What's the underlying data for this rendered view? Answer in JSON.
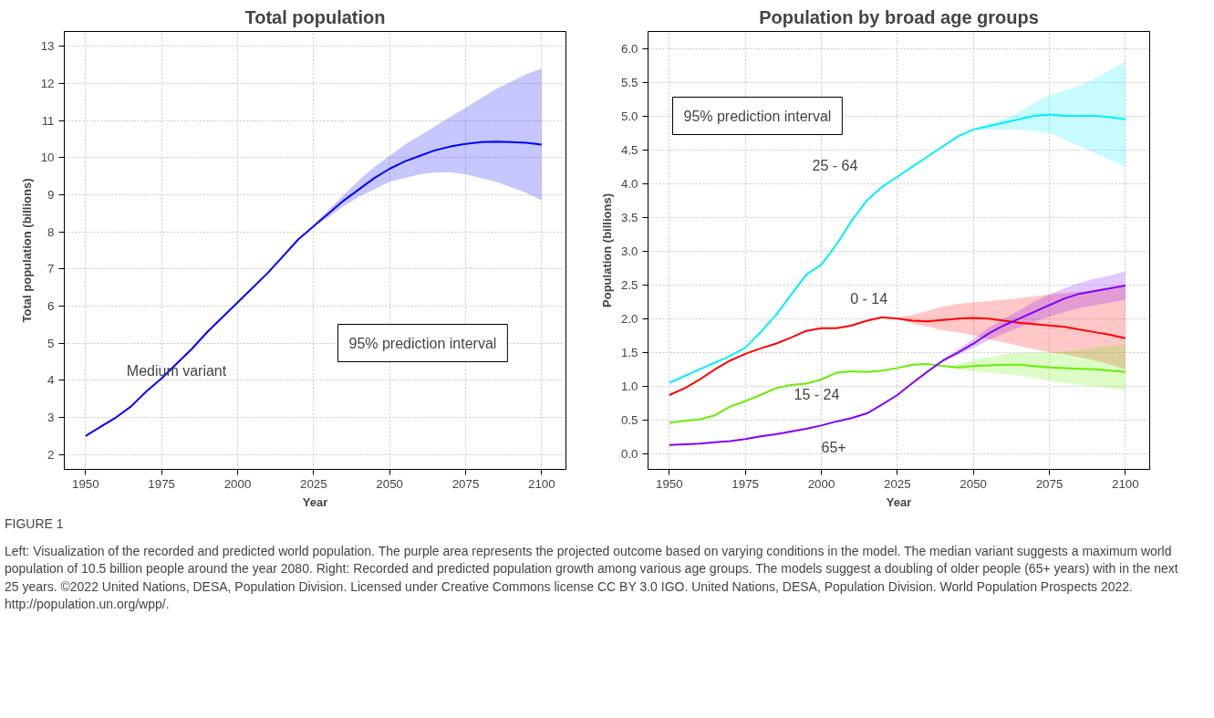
{
  "chart_data": [
    {
      "type": "line",
      "title": "Total population",
      "xlabel": "Year",
      "ylabel": "Total population (billions)",
      "annotations": [
        "95% prediction interval"
      ],
      "grid": true,
      "x": [
        1950,
        1955,
        1960,
        1965,
        1970,
        1975,
        1980,
        1985,
        1990,
        1995,
        2000,
        2005,
        2010,
        2015,
        2020,
        2025,
        2030,
        2035,
        2040,
        2045,
        2050,
        2055,
        2060,
        2065,
        2070,
        2075,
        2080,
        2085,
        2090,
        2095,
        2100
      ],
      "xlim": [
        1943,
        2108
      ],
      "xticks": [
        1950,
        1975,
        2000,
        2025,
        2050,
        2075,
        2100
      ],
      "ylim": [
        1.6,
        13.4
      ],
      "yticks": [
        2,
        3,
        4,
        5,
        6,
        7,
        8,
        9,
        10,
        11,
        12,
        13
      ],
      "series": [
        {
          "name": "Medium variant",
          "color": "#0000ff",
          "values": [
            2.5,
            2.75,
            3.0,
            3.3,
            3.7,
            4.05,
            4.45,
            4.85,
            5.3,
            5.7,
            6.1,
            6.5,
            6.9,
            7.35,
            7.8,
            8.15,
            8.5,
            8.85,
            9.15,
            9.45,
            9.7,
            9.9,
            10.05,
            10.2,
            10.3,
            10.37,
            10.42,
            10.43,
            10.42,
            10.4,
            10.35
          ],
          "lower": [
            null,
            null,
            null,
            null,
            null,
            null,
            null,
            null,
            null,
            null,
            null,
            null,
            null,
            null,
            null,
            8.15,
            8.4,
            8.7,
            8.95,
            9.15,
            9.35,
            9.45,
            9.55,
            9.6,
            9.6,
            9.55,
            9.45,
            9.35,
            9.2,
            9.05,
            8.85
          ],
          "upper": [
            null,
            null,
            null,
            null,
            null,
            null,
            null,
            null,
            null,
            null,
            null,
            null,
            null,
            null,
            null,
            8.2,
            8.6,
            9.0,
            9.4,
            9.75,
            10.05,
            10.35,
            10.6,
            10.85,
            11.1,
            11.35,
            11.6,
            11.85,
            12.05,
            12.25,
            12.4
          ]
        }
      ]
    },
    {
      "type": "line",
      "title": "Population by broad age groups",
      "xlabel": "Year",
      "ylabel": "Population (billions)",
      "grid": true,
      "x": [
        1950,
        1955,
        1960,
        1965,
        1970,
        1975,
        1980,
        1985,
        1990,
        1995,
        2000,
        2005,
        2010,
        2015,
        2020,
        2025,
        2030,
        2035,
        2040,
        2045,
        2050,
        2055,
        2060,
        2065,
        2070,
        2075,
        2080,
        2085,
        2090,
        2095,
        2100
      ],
      "xlim": [
        1943,
        2108
      ],
      "xticks": [
        1950,
        1975,
        2000,
        2025,
        2050,
        2075,
        2100
      ],
      "ylim": [
        -0.23,
        6.25
      ],
      "yticks": [
        {
          "value": 0,
          "label": "0.0"
        },
        0.5,
        {
          "value": 1,
          "label": "1.0"
        },
        1.5,
        {
          "value": 2,
          "label": "2.0"
        },
        2.5,
        {
          "value": 3,
          "label": "3.0"
        },
        3.5,
        {
          "value": 4,
          "label": "4.0"
        },
        4.5,
        {
          "value": 5,
          "label": "5.0"
        },
        5.5,
        {
          "value": 6,
          "label": "6.0"
        }
      ],
      "series": [
        {
          "name": "25 - 64",
          "color": "#00eeff",
          "values": [
            1.05,
            1.15,
            1.25,
            1.35,
            1.45,
            1.57,
            1.8,
            2.05,
            2.35,
            2.65,
            2.8,
            3.1,
            3.45,
            3.75,
            3.95,
            4.1,
            4.25,
            4.4,
            4.55,
            4.7,
            4.8,
            4.85,
            4.9,
            4.95,
            5.0,
            5.02,
            5.0,
            5.0,
            5.0,
            4.98,
            4.95
          ],
          "lower": [
            null,
            null,
            null,
            null,
            null,
            null,
            null,
            null,
            null,
            null,
            null,
            null,
            null,
            null,
            null,
            null,
            null,
            null,
            null,
            null,
            4.8,
            4.8,
            4.8,
            4.8,
            4.78,
            4.75,
            4.65,
            4.55,
            4.45,
            4.35,
            4.25
          ],
          "upper": [
            null,
            null,
            null,
            null,
            null,
            null,
            null,
            null,
            null,
            null,
            null,
            null,
            null,
            null,
            null,
            null,
            null,
            null,
            null,
            null,
            4.8,
            4.88,
            4.95,
            5.05,
            5.2,
            5.3,
            5.38,
            5.45,
            5.55,
            5.68,
            5.8
          ]
        },
        {
          "name": "0 - 14",
          "color": "#ff0000",
          "values": [
            0.87,
            0.97,
            1.1,
            1.25,
            1.38,
            1.48,
            1.56,
            1.63,
            1.72,
            1.82,
            1.86,
            1.86,
            1.9,
            1.97,
            2.02,
            2.0,
            1.97,
            1.96,
            1.98,
            2.0,
            2.01,
            2.0,
            1.97,
            1.94,
            1.92,
            1.9,
            1.88,
            1.84,
            1.8,
            1.76,
            1.71
          ],
          "lower": [
            null,
            null,
            null,
            null,
            null,
            null,
            null,
            null,
            null,
            null,
            null,
            null,
            null,
            null,
            null,
            2.0,
            1.93,
            1.88,
            1.83,
            1.8,
            1.75,
            1.7,
            1.65,
            1.6,
            1.55,
            1.5,
            1.47,
            1.43,
            1.38,
            1.32,
            1.25
          ],
          "upper": [
            null,
            null,
            null,
            null,
            null,
            null,
            null,
            null,
            null,
            null,
            null,
            null,
            null,
            null,
            null,
            2.02,
            2.05,
            2.12,
            2.18,
            2.22,
            2.24,
            2.26,
            2.28,
            2.3,
            2.33,
            2.36,
            2.38,
            2.4,
            2.42,
            2.45,
            2.5
          ]
        },
        {
          "name": "15 - 24",
          "color": "#66ee00",
          "values": [
            0.46,
            0.49,
            0.51,
            0.57,
            0.7,
            0.78,
            0.87,
            0.97,
            1.02,
            1.04,
            1.1,
            1.2,
            1.22,
            1.21,
            1.23,
            1.27,
            1.32,
            1.33,
            1.3,
            1.28,
            1.3,
            1.31,
            1.32,
            1.32,
            1.3,
            1.28,
            1.27,
            1.26,
            1.25,
            1.23,
            1.21
          ],
          "lower": [
            null,
            null,
            null,
            null,
            null,
            null,
            null,
            null,
            null,
            null,
            null,
            null,
            null,
            null,
            null,
            null,
            null,
            null,
            1.3,
            1.25,
            1.22,
            1.2,
            1.18,
            1.16,
            1.12,
            1.08,
            1.05,
            1.02,
            1.0,
            0.97,
            0.94
          ],
          "upper": [
            null,
            null,
            null,
            null,
            null,
            null,
            null,
            null,
            null,
            null,
            null,
            null,
            null,
            null,
            null,
            null,
            null,
            null,
            1.3,
            1.33,
            1.39,
            1.43,
            1.47,
            1.49,
            1.5,
            1.5,
            1.52,
            1.54,
            1.57,
            1.6,
            1.62
          ]
        },
        {
          "name": "65+",
          "color": "#8000ff",
          "values": [
            0.13,
            0.14,
            0.15,
            0.17,
            0.19,
            0.22,
            0.26,
            0.29,
            0.33,
            0.37,
            0.42,
            0.48,
            0.53,
            0.6,
            0.73,
            0.87,
            1.05,
            1.22,
            1.38,
            1.5,
            1.63,
            1.78,
            1.9,
            2.0,
            2.1,
            2.2,
            2.3,
            2.37,
            2.41,
            2.45,
            2.49
          ],
          "lower": [
            null,
            null,
            null,
            null,
            null,
            null,
            null,
            null,
            null,
            null,
            null,
            null,
            null,
            null,
            null,
            null,
            null,
            1.22,
            1.36,
            1.47,
            1.57,
            1.68,
            1.78,
            1.87,
            1.95,
            2.03,
            2.1,
            2.16,
            2.2,
            2.24,
            2.28
          ],
          "upper": [
            null,
            null,
            null,
            null,
            null,
            null,
            null,
            null,
            null,
            null,
            null,
            null,
            null,
            null,
            null,
            null,
            null,
            1.22,
            1.4,
            1.55,
            1.7,
            1.86,
            2.0,
            2.12,
            2.25,
            2.36,
            2.45,
            2.53,
            2.59,
            2.64,
            2.7
          ]
        }
      ],
      "annotations": [
        "95% prediction interval",
        "FIGURE 1",
        "Left: Visualization of the recorded and predicted world population. The purple area represents the projected outcome based on varying conditions in the model. The median variant suggests a maximum world population of 10.5 billion people around the year 2080. Right: Recorded and predicted population growth among various age groups. The models suggest a doubling of older people (65+ years) with in the next 25 years. ©2022 United Nations, DESA, Population Division. Licensed under Creative Commons license CC BY 3.0 IGO. United Nations, DESA, Population Division. World Population Prospects 2022. http://population.un.org/wpp/."
      ]
    }
  ]
}
